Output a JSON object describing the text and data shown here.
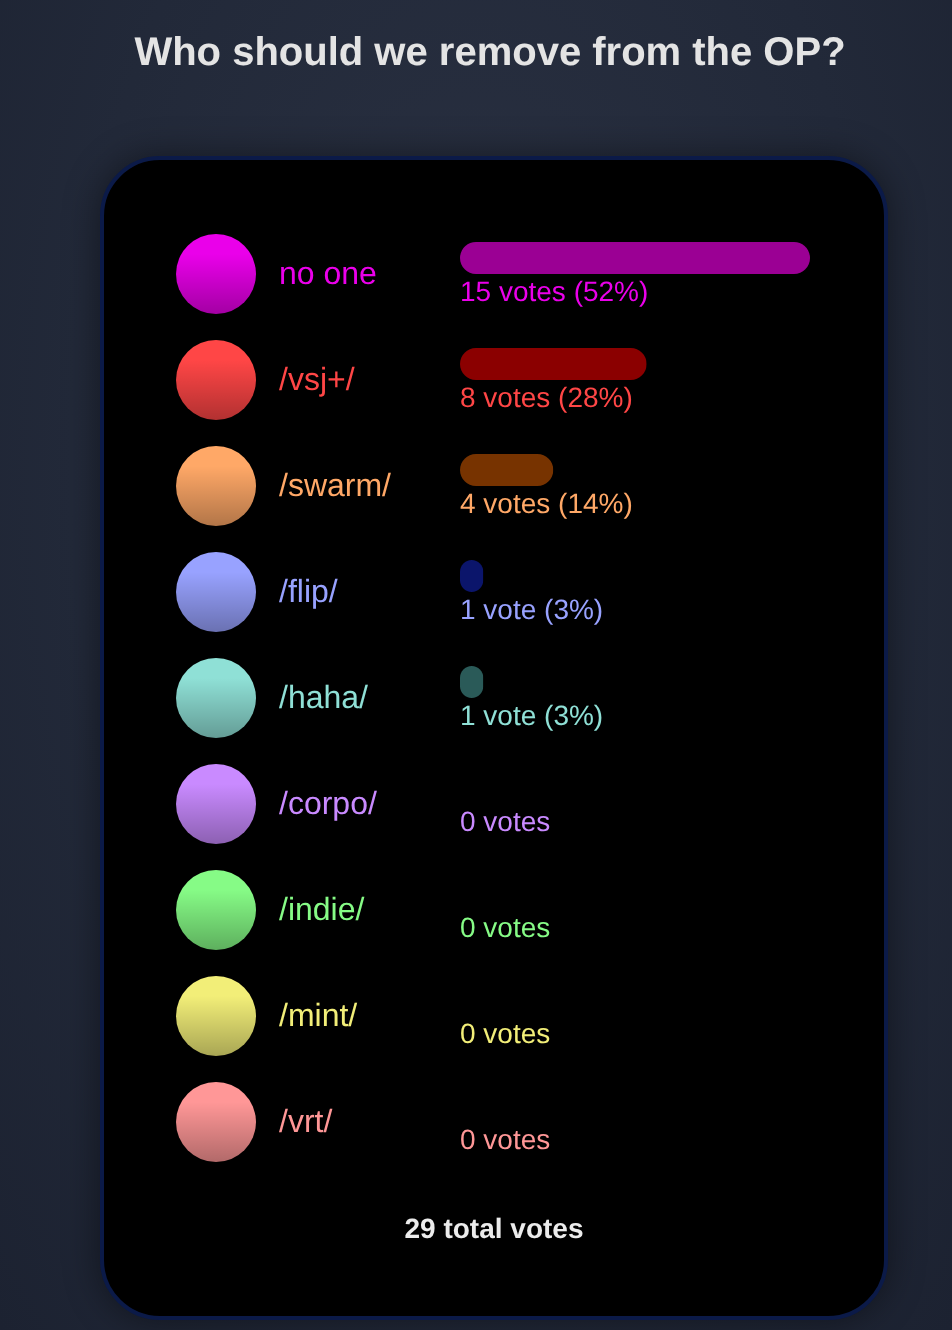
{
  "chart_data": {
    "type": "bar",
    "orientation": "horizontal",
    "title": "Who should we remove from the OP?",
    "categories": [
      "no one",
      "/vsj+/",
      "/swarm/",
      "/flip/",
      "/haha/",
      "/corpo/",
      "/indie/",
      "/mint/",
      "/vrt/"
    ],
    "values": [
      15,
      8,
      4,
      1,
      1,
      0,
      0,
      0,
      0
    ],
    "colors": [
      "#9b0094",
      "#8b0000",
      "#773300",
      "#0b156b",
      "#2a5a58",
      null,
      null,
      null,
      null
    ],
    "value_labels": [
      "15 votes (52%)",
      "8 votes (28%)",
      "4 votes (14%)",
      "1 vote (3%)",
      "1 vote (3%)",
      "0 votes",
      "0 votes",
      "0 votes",
      "0 votes"
    ],
    "xlim": [
      0,
      15
    ],
    "tick_labels": "y",
    "annotations": [
      "29 total votes"
    ]
  }
}
